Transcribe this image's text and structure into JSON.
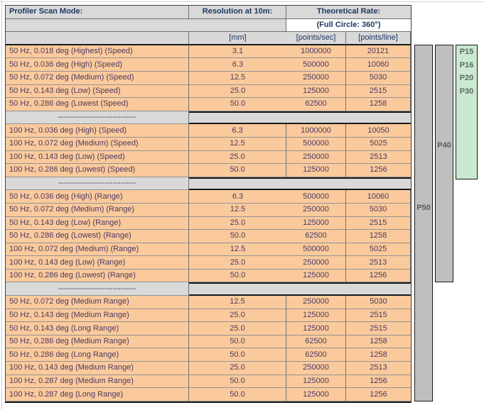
{
  "sheet": {
    "header": {
      "scan_mode": "Profiler Scan Mode:",
      "resolution": "Resolution at 10m:",
      "rate": "Theoretical Rate:",
      "rate_subtitle": "(Full Circle: 360°)",
      "units": {
        "mm": "[mm]",
        "points_per_sec": "[points/sec]",
        "points_per_line": "[points/line]"
      }
    },
    "separator": "------------------------------",
    "sections": [
      {
        "rows": [
          [
            "50 Hz, 0.018 deg (Highest) (Speed)",
            "3.1",
            "1000000",
            "20121"
          ],
          [
            "50 Hz, 0.036 deg (High) (Speed)",
            "6.3",
            "500000",
            "10060"
          ],
          [
            "50 Hz, 0.072 deg (Medium) (Speed)",
            "12.5",
            "250000",
            "5030"
          ],
          [
            "50 Hz, 0.143 deg (Low) (Speed)",
            "25.0",
            "125000",
            "2515"
          ],
          [
            "50 Hz, 0.286 deg (Lowest (Speed)",
            "50.0",
            "62500",
            "1258"
          ]
        ]
      },
      {
        "rows": [
          [
            "100 Hz, 0.036 deg (High) (Speed)",
            "6.3",
            "1000000",
            "10050"
          ],
          [
            "100 Hz, 0.072 deg (Medium) (Speed)",
            "12.5",
            "500000",
            "5025"
          ],
          [
            "100 Hz, 0.143 deg (Low) (Speed)",
            "25.0",
            "250000",
            "2513"
          ],
          [
            "100 Hz, 0.286 deg (Lowest) (Speed)",
            "50.0",
            "125000",
            "1256"
          ]
        ]
      },
      {
        "rows": [
          [
            "50 Hz, 0.036 deg (High) (Range)",
            "6.3",
            "500000",
            "10060"
          ],
          [
            "50 Hz, 0.072 deg (Medium) (Range)",
            "12.5",
            "250000",
            "5030"
          ],
          [
            "50 Hz, 0.143 deg (Low) (Range)",
            "25.0",
            "125000",
            "2515"
          ],
          [
            "50 Hz, 0.286 deg (Lowest) (Range)",
            "50.0",
            "62500",
            "1258"
          ],
          [
            "100 Hz, 0.072 deg (Medium) (Range)",
            "12.5",
            "500000",
            "5025"
          ],
          [
            "100 Hz, 0.143 deg (Low) (Range)",
            "25.0",
            "250000",
            "2513"
          ],
          [
            "100 Hz, 0.286 deg (Lowest) (Range)",
            "50.0",
            "125000",
            "1256"
          ]
        ]
      },
      {
        "rows": [
          [
            "50 Hz, 0.072 deg (Medium Range)",
            "12.5",
            "250000",
            "5030"
          ],
          [
            "50 Hz, 0.143 deg (Medium Range)",
            "25.0",
            "125000",
            "2515"
          ],
          [
            "50 Hz, 0.143 deg (Long Range)",
            "25.0",
            "125000",
            "2515"
          ],
          [
            "50 Hz, 0.286 deg (Medium Range)",
            "50.0",
            "62500",
            "1258"
          ],
          [
            "50 Hz, 0.286 deg (Long Range)",
            "50.0",
            "62500",
            "1258"
          ],
          [
            "100 Hz, 0.143 deg (Medium Range)",
            "25.0",
            "250000",
            "2513"
          ],
          [
            "100 Hz, 0.287 deg (Medium Range)",
            "50.0",
            "125000",
            "1256"
          ],
          [
            "100 Hz, 0.287 deg (Long Range)",
            "50.0",
            "125000",
            "1256"
          ]
        ]
      }
    ]
  },
  "side_columns": [
    {
      "id": "p50",
      "label": "P50",
      "color": "#bfbfbf"
    },
    {
      "id": "p40",
      "label": "P40",
      "color": "#bfbfbf"
    },
    {
      "id": "p-group",
      "labels": [
        "P15",
        "P16",
        "P20",
        "P30"
      ],
      "color": "#cbe9d0"
    }
  ],
  "colors": {
    "row_fill": "#fbca9c",
    "header_fill": "#d9d9d9",
    "subtitle_fill": "#ffffff",
    "bar_gray": "#bfbfbf",
    "bar_green": "#cbe9d0",
    "header_text": "#1f3864",
    "data_text": "#4a3a62",
    "bar_label_text": "#595959"
  }
}
